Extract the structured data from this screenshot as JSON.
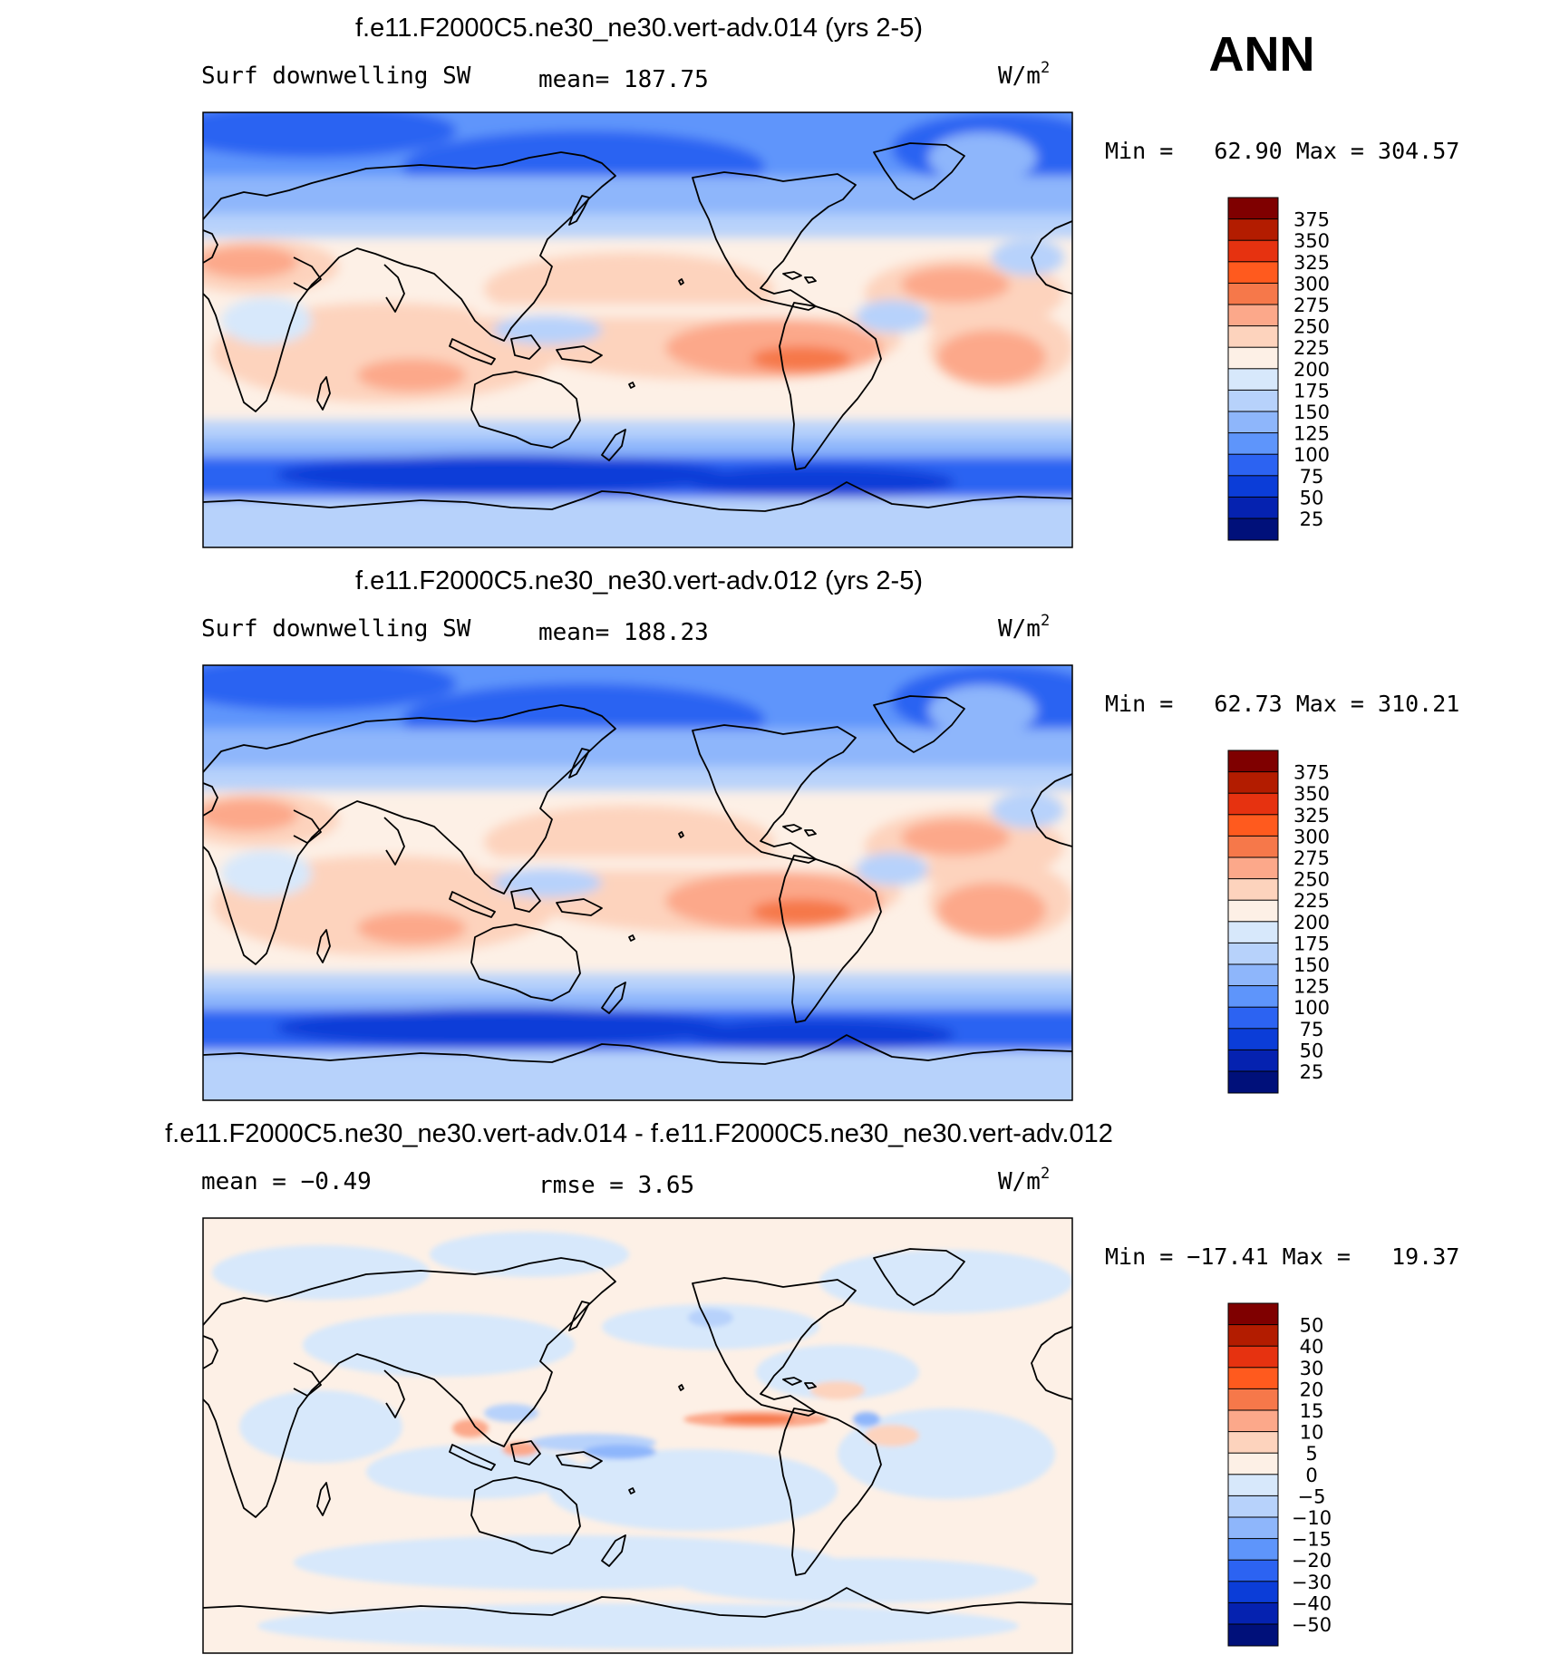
{
  "season": "ANN",
  "panels": [
    {
      "title": "f.e11.F2000C5.ne30_ne30.vert-adv.014 (yrs 2-5)",
      "left_label": "Surf downwelling SW",
      "center_label": "mean= 187.75",
      "units_label": "W/m",
      "units_exponent": "2",
      "minmax": "Min =   62.90 Max = 304.57",
      "colorbar_labels": [
        "375",
        "350",
        "325",
        "300",
        "275",
        "250",
        "225",
        "200",
        "175",
        "150",
        "125",
        "100",
        "75",
        "50",
        "25"
      ],
      "colorbar_colors": [
        "#7f0000",
        "#b31c00",
        "#e63210",
        "#ff5a1e",
        "#f6784a",
        "#fca88a",
        "#fdd3bd",
        "#fdf0e6",
        "#d7e8fb",
        "#b7d2fb",
        "#8eb6fb",
        "#5e95fb",
        "#2c63f2",
        "#0b3dd8",
        "#0522b0",
        "#00107a"
      ]
    },
    {
      "title": "f.e11.F2000C5.ne30_ne30.vert-adv.012 (yrs 2-5)",
      "left_label": "Surf downwelling SW",
      "center_label": "mean= 188.23",
      "units_label": "W/m",
      "units_exponent": "2",
      "minmax": "Min =   62.73 Max = 310.21",
      "colorbar_labels": [
        "375",
        "350",
        "325",
        "300",
        "275",
        "250",
        "225",
        "200",
        "175",
        "150",
        "125",
        "100",
        "75",
        "50",
        "25"
      ],
      "colorbar_colors": [
        "#7f0000",
        "#b31c00",
        "#e63210",
        "#ff5a1e",
        "#f6784a",
        "#fca88a",
        "#fdd3bd",
        "#fdf0e6",
        "#d7e8fb",
        "#b7d2fb",
        "#8eb6fb",
        "#5e95fb",
        "#2c63f2",
        "#0b3dd8",
        "#0522b0",
        "#00107a"
      ]
    },
    {
      "title": "f.e11.F2000C5.ne30_ne30.vert-adv.014 - f.e11.F2000C5.ne30_ne30.vert-adv.012",
      "left_label": "mean =   −0.49",
      "center_label": "rmse =    3.65",
      "units_label": "W/m",
      "units_exponent": "2",
      "minmax": "Min = −17.41 Max =   19.37",
      "colorbar_labels": [
        "50",
        "40",
        "30",
        "20",
        "15",
        "10",
        "5",
        "0",
        "−5",
        "−10",
        "−15",
        "−20",
        "−30",
        "−40",
        "−50"
      ],
      "colorbar_colors": [
        "#7f0000",
        "#b31c00",
        "#e63210",
        "#ff5a1e",
        "#f6784a",
        "#fca88a",
        "#fdd3bd",
        "#fdf0e6",
        "#d7e8fb",
        "#b7d2fb",
        "#8eb6fb",
        "#5e95fb",
        "#2c63f2",
        "#0b3dd8",
        "#0522b0",
        "#00107a"
      ]
    }
  ]
}
